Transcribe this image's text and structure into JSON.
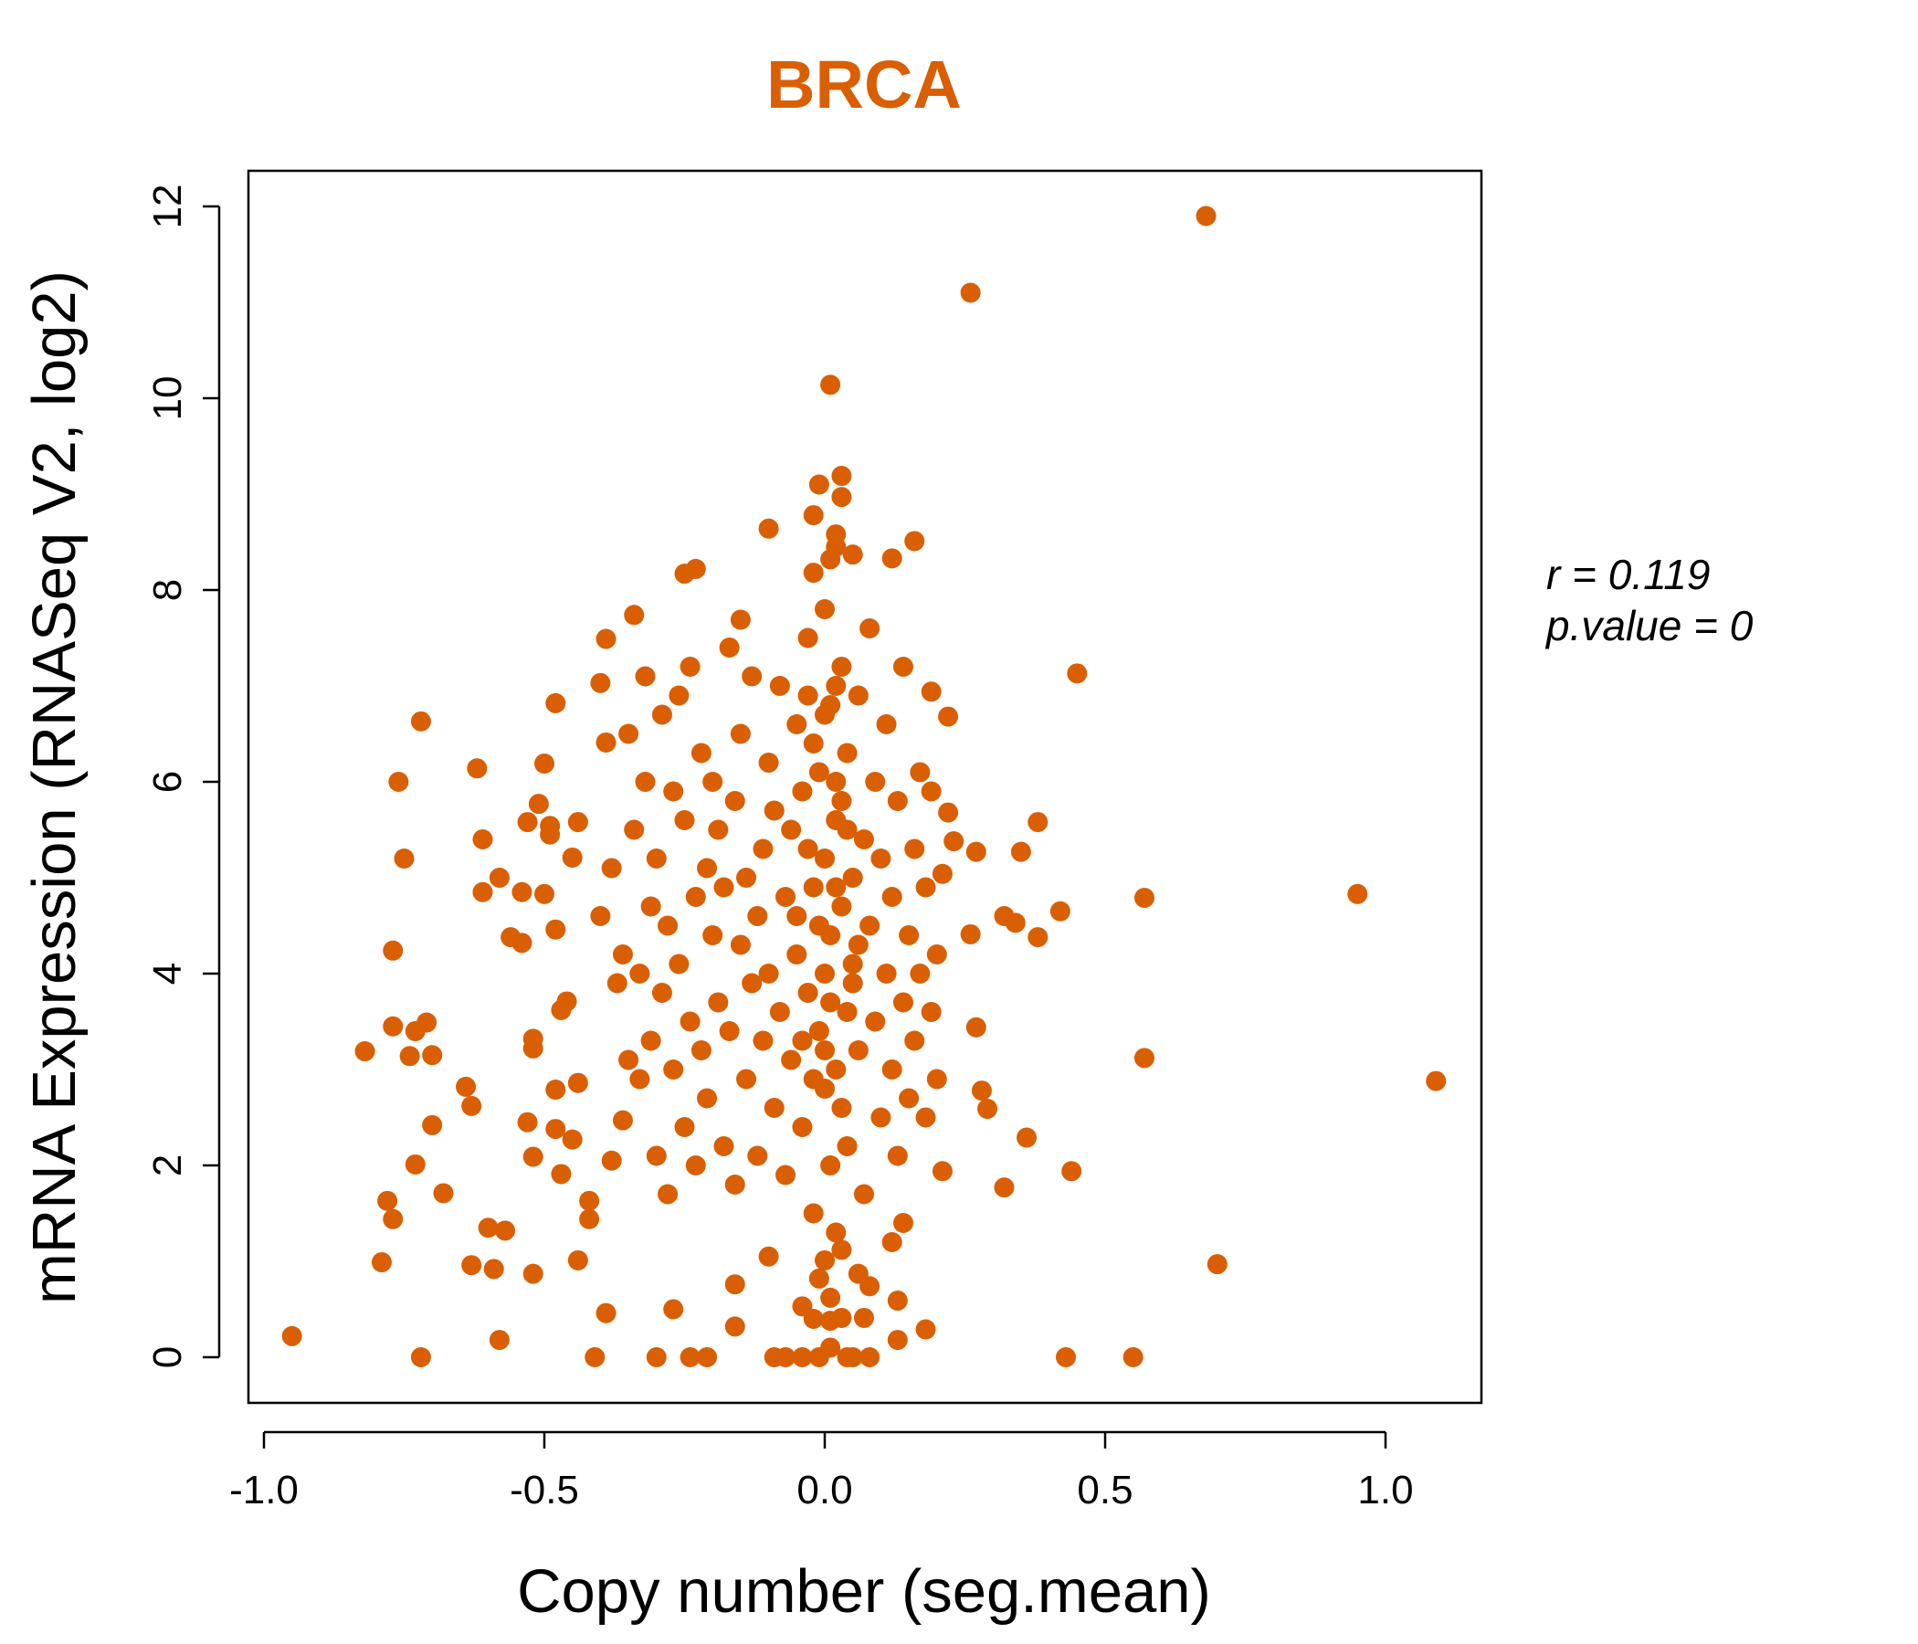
{
  "chart_data": {
    "type": "scatter",
    "title": "BRCA",
    "xlabel": "Copy number (seg.mean)",
    "ylabel": "mRNA Expression (RNASeq V2, log2)",
    "xlim": [
      -1.05,
      1.17
    ],
    "ylim": [
      -0.5,
      12.4
    ],
    "xticks": [
      -1.0,
      -0.5,
      0.0,
      0.5,
      1.0
    ],
    "xtick_labels": [
      "-1.0",
      "-0.5",
      "0.0",
      "0.5",
      "1.0"
    ],
    "yticks": [
      0,
      2,
      4,
      6,
      8,
      10,
      12
    ],
    "ytick_labels": [
      "0",
      "2",
      "4",
      "6",
      "8",
      "10",
      "12"
    ],
    "grid": false,
    "point_color": "#D95F02",
    "title_color": "#D95F02",
    "annotation": {
      "r_label": "r = 0.119",
      "p_label": "p.value = 0"
    },
    "points": [
      [
        -0.95,
        0.22
      ],
      [
        -0.82,
        3.19
      ],
      [
        -0.79,
        0.99
      ],
      [
        -0.78,
        1.63
      ],
      [
        -0.77,
        1.44
      ],
      [
        -0.77,
        4.24
      ],
      [
        -0.77,
        3.45
      ],
      [
        -0.76,
        6.0
      ],
      [
        -0.75,
        5.2
      ],
      [
        -0.74,
        3.14
      ],
      [
        -0.73,
        2.01
      ],
      [
        -0.73,
        3.4
      ],
      [
        -0.72,
        6.63
      ],
      [
        -0.72,
        0
      ],
      [
        -0.71,
        3.49
      ],
      [
        -0.7,
        3.15
      ],
      [
        -0.7,
        2.42
      ],
      [
        -0.68,
        1.71
      ],
      [
        -0.64,
        2.82
      ],
      [
        -0.63,
        2.62
      ],
      [
        -0.63,
        0.96
      ],
      [
        -0.62,
        6.14
      ],
      [
        -0.61,
        5.4
      ],
      [
        -0.61,
        4.85
      ],
      [
        -0.6,
        1.35
      ],
      [
        -0.59,
        0.92
      ],
      [
        -0.58,
        5.0
      ],
      [
        -0.58,
        0.18
      ],
      [
        -0.57,
        1.32
      ],
      [
        -0.56,
        4.38
      ],
      [
        -0.54,
        4.85
      ],
      [
        -0.54,
        4.32
      ],
      [
        -0.53,
        2.45
      ],
      [
        -0.53,
        5.58
      ],
      [
        -0.52,
        2.09
      ],
      [
        -0.52,
        0.87
      ],
      [
        -0.52,
        3.32
      ],
      [
        -0.52,
        3.22
      ],
      [
        -0.51,
        5.77
      ],
      [
        -0.5,
        4.83
      ],
      [
        -0.5,
        6.19
      ],
      [
        -0.49,
        5.54
      ],
      [
        -0.49,
        5.45
      ],
      [
        -0.48,
        2.79
      ],
      [
        -0.48,
        4.46
      ],
      [
        -0.48,
        6.82
      ],
      [
        -0.48,
        2.38
      ],
      [
        -0.47,
        1.91
      ],
      [
        -0.47,
        3.62
      ],
      [
        -0.46,
        3.71
      ],
      [
        -0.45,
        2.27
      ],
      [
        -0.45,
        5.21
      ],
      [
        -0.44,
        1.01
      ],
      [
        -0.44,
        5.58
      ],
      [
        -0.44,
        2.86
      ],
      [
        -0.41,
        0
      ],
      [
        -0.39,
        0.46
      ],
      [
        -0.39,
        7.49
      ],
      [
        -0.4,
        7.03
      ],
      [
        -0.39,
        6.41
      ],
      [
        -0.34,
        7.74
      ],
      [
        -0.38,
        2.05
      ],
      [
        -0.42,
        1.44
      ],
      [
        -0.42,
        1.63
      ],
      [
        -0.36,
        2.47
      ],
      [
        -0.3,
        0
      ],
      [
        -0.27,
        0.5
      ],
      [
        -0.25,
        8.17
      ],
      [
        -0.23,
        8.22
      ],
      [
        -0.24,
        0
      ],
      [
        -0.21,
        0
      ],
      [
        -0.16,
        0.32
      ],
      [
        -0.16,
        0.76
      ],
      [
        -0.1,
        1.05
      ],
      [
        -0.1,
        8.64
      ],
      [
        -0.15,
        7.69
      ],
      [
        -0.09,
        0
      ],
      [
        -0.07,
        0
      ],
      [
        -0.04,
        0
      ],
      [
        -0.01,
        0
      ],
      [
        0.01,
        0.1
      ],
      [
        0.04,
        0
      ],
      [
        0.05,
        0
      ],
      [
        0.08,
        0
      ],
      [
        0.13,
        0.18
      ],
      [
        0.18,
        0.29
      ],
      [
        0.13,
        0.59
      ],
      [
        0.08,
        0.74
      ],
      [
        0.06,
        0.87
      ],
      [
        0.07,
        0.41
      ],
      [
        0.03,
        0.41
      ],
      [
        -0.02,
        0.4
      ],
      [
        0.01,
        0.38
      ],
      [
        -0.04,
        0.53
      ],
      [
        -0.01,
        0.82
      ],
      [
        0.01,
        0.62
      ],
      [
        0.0,
        1.01
      ],
      [
        0.03,
        1.12
      ],
      [
        0.01,
        10.14
      ],
      [
        -0.01,
        9.1
      ],
      [
        0.03,
        9.19
      ],
      [
        0.03,
        8.97
      ],
      [
        -0.02,
        8.78
      ],
      [
        0.02,
        8.58
      ],
      [
        0.02,
        8.45
      ],
      [
        0.01,
        8.32
      ],
      [
        -0.02,
        8.18
      ],
      [
        0.05,
        8.37
      ],
      [
        0.12,
        8.33
      ],
      [
        0.16,
        8.51
      ],
      [
        0.26,
        11.1
      ],
      [
        0.68,
        11.9
      ],
      [
        0.45,
        7.13
      ],
      [
        0.95,
        4.83
      ],
      [
        1.09,
        2.88
      ],
      [
        0.7,
        0.97
      ],
      [
        0.57,
        3.12
      ],
      [
        0.57,
        4.79
      ],
      [
        0.42,
        4.65
      ],
      [
        0.44,
        1.94
      ],
      [
        0.43,
        0
      ],
      [
        0.55,
        0
      ],
      [
        0.38,
        5.58
      ],
      [
        0.35,
        5.27
      ],
      [
        0.38,
        4.38
      ],
      [
        0.34,
        4.53
      ],
      [
        0.32,
        4.6
      ],
      [
        0.36,
        2.29
      ],
      [
        0.32,
        1.77
      ],
      [
        0.27,
        3.44
      ],
      [
        0.27,
        5.27
      ],
      [
        0.26,
        4.41
      ],
      [
        0.28,
        2.78
      ],
      [
        0.29,
        2.59
      ],
      [
        0.22,
        6.68
      ],
      [
        0.19,
        6.94
      ],
      [
        0.21,
        1.94
      ],
      [
        0.22,
        5.68
      ],
      [
        0.23,
        5.38
      ],
      [
        0.21,
        5.04
      ],
      [
        -0.4,
        4.6
      ],
      [
        -0.38,
        5.1
      ],
      [
        -0.37,
        3.9
      ],
      [
        -0.36,
        4.2
      ],
      [
        -0.35,
        3.1
      ],
      [
        -0.35,
        6.5
      ],
      [
        -0.34,
        5.5
      ],
      [
        -0.33,
        4.0
      ],
      [
        -0.33,
        2.9
      ],
      [
        -0.32,
        7.1
      ],
      [
        -0.32,
        6.0
      ],
      [
        -0.31,
        4.7
      ],
      [
        -0.31,
        3.3
      ],
      [
        -0.3,
        5.2
      ],
      [
        -0.3,
        2.1
      ],
      [
        -0.29,
        6.7
      ],
      [
        -0.29,
        3.8
      ],
      [
        -0.28,
        4.5
      ],
      [
        -0.28,
        1.7
      ],
      [
        -0.27,
        5.9
      ],
      [
        -0.27,
        3.0
      ],
      [
        -0.26,
        6.9
      ],
      [
        -0.26,
        4.1
      ],
      [
        -0.25,
        2.4
      ],
      [
        -0.25,
        5.6
      ],
      [
        -0.24,
        3.5
      ],
      [
        -0.24,
        7.2
      ],
      [
        -0.23,
        4.8
      ],
      [
        -0.23,
        2.0
      ],
      [
        -0.22,
        6.3
      ],
      [
        -0.22,
        3.2
      ],
      [
        -0.21,
        5.1
      ],
      [
        -0.21,
        2.7
      ],
      [
        -0.2,
        4.4
      ],
      [
        -0.2,
        6.0
      ],
      [
        -0.19,
        3.7
      ],
      [
        -0.19,
        5.5
      ],
      [
        -0.18,
        2.2
      ],
      [
        -0.18,
        4.9
      ],
      [
        -0.17,
        7.4
      ],
      [
        -0.17,
        3.4
      ],
      [
        -0.16,
        5.8
      ],
      [
        -0.16,
        1.8
      ],
      [
        -0.15,
        4.3
      ],
      [
        -0.15,
        6.5
      ],
      [
        -0.14,
        2.9
      ],
      [
        -0.14,
        5.0
      ],
      [
        -0.13,
        3.9
      ],
      [
        -0.13,
        7.1
      ],
      [
        -0.12,
        4.6
      ],
      [
        -0.12,
        2.1
      ],
      [
        -0.11,
        5.3
      ],
      [
        -0.11,
        3.3
      ],
      [
        -0.1,
        6.2
      ],
      [
        -0.1,
        4.0
      ],
      [
        -0.09,
        2.6
      ],
      [
        -0.09,
        5.7
      ],
      [
        -0.08,
        3.6
      ],
      [
        -0.08,
        7.0
      ],
      [
        -0.07,
        4.8
      ],
      [
        -0.07,
        1.9
      ],
      [
        -0.06,
        5.5
      ],
      [
        -0.06,
        3.1
      ],
      [
        -0.05,
        6.6
      ],
      [
        -0.05,
        4.2
      ],
      [
        -0.04,
        2.4
      ],
      [
        -0.04,
        5.9
      ],
      [
        -0.03,
        3.8
      ],
      [
        -0.03,
        7.5
      ],
      [
        -0.02,
        4.9
      ],
      [
        -0.02,
        1.5
      ],
      [
        -0.01,
        6.1
      ],
      [
        -0.01,
        3.4
      ],
      [
        0.0,
        5.2
      ],
      [
        0.0,
        2.8
      ],
      [
        0.0,
        7.8
      ],
      [
        0.01,
        4.4
      ],
      [
        0.01,
        6.8
      ],
      [
        0.02,
        3.0
      ],
      [
        0.02,
        5.6
      ],
      [
        0.02,
        1.3
      ],
      [
        0.03,
        4.7
      ],
      [
        0.03,
        7.2
      ],
      [
        0.04,
        3.6
      ],
      [
        0.04,
        6.3
      ],
      [
        0.04,
        2.2
      ],
      [
        0.05,
        5.0
      ],
      [
        0.05,
        4.1
      ],
      [
        0.06,
        6.9
      ],
      [
        0.06,
        3.2
      ],
      [
        0.07,
        5.4
      ],
      [
        0.07,
        1.7
      ],
      [
        0.08,
        4.5
      ],
      [
        0.08,
        7.6
      ],
      [
        0.09,
        3.5
      ],
      [
        0.09,
        6.0
      ],
      [
        0.1,
        2.5
      ],
      [
        0.1,
        5.2
      ],
      [
        0.11,
        4.0
      ],
      [
        0.11,
        6.6
      ],
      [
        0.12,
        3.0
      ],
      [
        0.12,
        4.8
      ],
      [
        0.13,
        2.1
      ],
      [
        0.13,
        5.8
      ],
      [
        0.14,
        3.7
      ],
      [
        0.14,
        7.2
      ],
      [
        0.15,
        4.4
      ],
      [
        0.15,
        2.7
      ],
      [
        0.16,
        5.3
      ],
      [
        0.16,
        3.3
      ],
      [
        0.17,
        6.1
      ],
      [
        0.17,
        4.0
      ],
      [
        0.18,
        2.5
      ],
      [
        0.18,
        4.9
      ],
      [
        0.19,
        3.6
      ],
      [
        0.19,
        5.9
      ],
      [
        0.2,
        2.9
      ],
      [
        0.2,
        4.2
      ],
      [
        0.14,
        1.4
      ],
      [
        0.12,
        1.2
      ],
      [
        -0.05,
        4.6
      ],
      [
        -0.03,
        5.3
      ],
      [
        0.0,
        4.0
      ],
      [
        0.02,
        4.9
      ],
      [
        0.04,
        5.5
      ],
      [
        0.01,
        3.7
      ],
      [
        -0.02,
        6.4
      ],
      [
        0.03,
        2.6
      ],
      [
        0.05,
        3.9
      ],
      [
        -0.01,
        4.5
      ],
      [
        0.02,
        6.0
      ],
      [
        0.0,
        6.7
      ],
      [
        0.03,
        5.8
      ],
      [
        -0.04,
        3.3
      ],
      [
        0.06,
        4.3
      ],
      [
        0.01,
        2.0
      ],
      [
        -0.02,
        2.9
      ],
      [
        0.0,
        3.2
      ],
      [
        0.02,
        7.0
      ],
      [
        -0.03,
        6.9
      ]
    ]
  }
}
